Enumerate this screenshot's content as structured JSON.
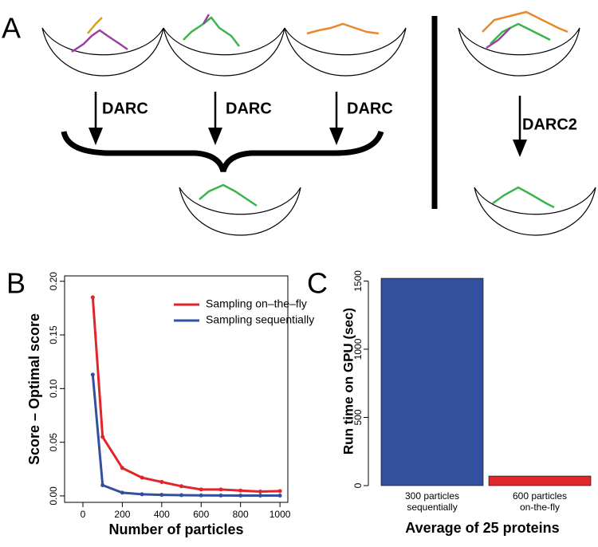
{
  "diagram": {
    "panel_label": "A",
    "arrow_labels": [
      "DARC",
      "DARC",
      "DARC",
      "DARC2"
    ]
  },
  "chart_data": [
    {
      "type": "line",
      "panel_label": "B",
      "x_label": "Number of particles",
      "y_label": "Score – Optimal score",
      "x": [
        50,
        100,
        200,
        300,
        400,
        500,
        600,
        700,
        800,
        900,
        1000
      ],
      "series": [
        {
          "name": "Sampling on–the–fly",
          "color": "#e0262b",
          "values": [
            0.185,
            0.055,
            0.026,
            0.017,
            0.013,
            0.009,
            0.006,
            0.006,
            0.005,
            0.004,
            0.0045
          ]
        },
        {
          "name": "Sampling sequentially",
          "color": "#33509e",
          "values": [
            0.113,
            0.01,
            0.003,
            0.0015,
            0.001,
            0.0007,
            0.0005,
            0.0004,
            0.0003,
            0.0003,
            0.0003
          ]
        }
      ],
      "xlim": [
        -93,
        1040
      ],
      "ylim": [
        -0.006,
        0.205
      ],
      "xticks": [
        0,
        200,
        400,
        600,
        800,
        1000
      ],
      "yticks": [
        {
          "value": 0,
          "label": "0.00"
        },
        {
          "value": 0.05,
          "label": "0.05"
        },
        {
          "value": 0.1,
          "label": "0.10"
        },
        {
          "value": 0.15,
          "label": "0.15"
        },
        {
          "value": 0.2,
          "label": "0.20"
        }
      ],
      "legend": "top-right",
      "grid": false
    },
    {
      "type": "bar",
      "panel_label": "C",
      "x_label": "Average of 25 proteins",
      "y_label": "Run time on GPU (sec)",
      "categories": [
        "300 particles\nsequentially",
        "600 particles\non-the-fly"
      ],
      "values": [
        1520,
        70
      ],
      "colors": [
        "#33509e",
        "#e0262b"
      ],
      "ylim": [
        0,
        1520
      ],
      "yticks": [
        0,
        500,
        1000,
        1500
      ],
      "grid": false
    }
  ]
}
